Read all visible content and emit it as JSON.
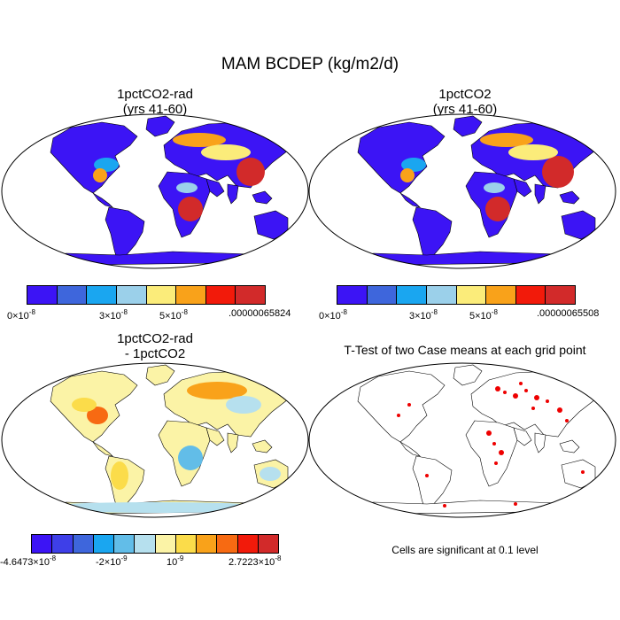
{
  "figure": {
    "title": "MAM BCDEP (kg/m2/d)"
  },
  "panels": [
    {
      "id": "p1",
      "title_line1": "1pctCO2-rad",
      "title_line2": "(yrs 41-60)",
      "colorbar": {
        "colors": [
          "#3c14f5",
          "#3e66dc",
          "#1aa6f0",
          "#9bd0ea",
          "#fbec7a",
          "#f9a21a",
          "#f21a0a",
          "#d22a2a"
        ],
        "tick_first": "0×10",
        "tick_first_exp": "-8",
        "tick_mid1": "3×10",
        "tick_mid1_exp": "-8",
        "tick_mid2": "5×10",
        "tick_mid2_exp": "-8",
        "tick_last": ".00000065824"
      }
    },
    {
      "id": "p2",
      "title_line1": "1pctCO2",
      "title_line2": "(yrs 41-60)",
      "colorbar": {
        "colors": [
          "#3c14f5",
          "#3e66dc",
          "#1aa6f0",
          "#9bd0ea",
          "#fbec7a",
          "#f9a21a",
          "#f21a0a",
          "#d22a2a"
        ],
        "tick_first": "0×10",
        "tick_first_exp": "-8",
        "tick_mid1": "3×10",
        "tick_mid1_exp": "-8",
        "tick_mid2": "5×10",
        "tick_mid2_exp": "-8",
        "tick_last": ".00000065508"
      }
    },
    {
      "id": "p3",
      "title_line1": "1pctCO2-rad",
      "title_line2": "- 1pctCO2",
      "colorbar": {
        "colors": [
          "#3c14f5",
          "#3e3fe8",
          "#3e66dc",
          "#1aa6f0",
          "#62bde8",
          "#b6e0ee",
          "#fbf3a6",
          "#fbdc4a",
          "#f9a21a",
          "#f76a12",
          "#f21a0a",
          "#d22a2a"
        ],
        "tick_first": "-4.6473×10",
        "tick_first_exp": "-8",
        "tick_mid1": "-2×10",
        "tick_mid1_exp": "-9",
        "tick_mid2": "10",
        "tick_mid2_exp": "-9",
        "tick_last": "2.7223×10",
        "tick_last_exp": "-8"
      }
    },
    {
      "id": "p4",
      "title_line1": "T-Test of two Case means at each grid point",
      "note": "Cells are significant at 0.1 level"
    }
  ],
  "colors": {
    "ocean": "#ffffff",
    "significant": "#ee0000",
    "coast": "#000000"
  }
}
